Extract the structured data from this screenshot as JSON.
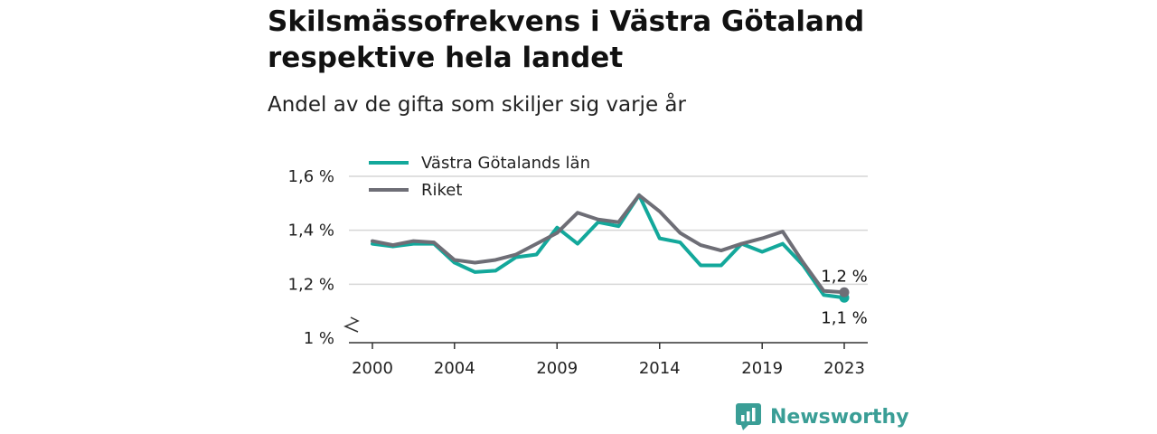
{
  "title": "Skilsmässofrekvens i Västra Götaland respektive hela landet",
  "subtitle": "Andel av de gifta som skiljer sig varje år",
  "brand": {
    "name": "Newsworthy",
    "icon": "newsworthy-logo-icon"
  },
  "colors": {
    "vg": "#13a89b",
    "riket": "#6e6e76",
    "grid": "#d6d6d6",
    "axis": "#333333"
  },
  "chart_data": {
    "type": "line",
    "x": [
      2000,
      2001,
      2002,
      2003,
      2004,
      2005,
      2006,
      2007,
      2008,
      2009,
      2010,
      2011,
      2012,
      2013,
      2014,
      2015,
      2016,
      2017,
      2018,
      2019,
      2020,
      2021,
      2022,
      2023
    ],
    "x_ticks": [
      2000,
      2004,
      2009,
      2014,
      2019,
      2023
    ],
    "x_tick_labels": [
      "2000",
      "2004",
      "2009",
      "2014",
      "2019",
      "2023"
    ],
    "y_ticks": [
      1.0,
      1.2,
      1.4,
      1.6
    ],
    "y_tick_labels": [
      "1 %",
      "1,2 %",
      "1,4 %",
      "1,6 %"
    ],
    "ylim": [
      1.0,
      1.6
    ],
    "xlim": [
      2000,
      2023
    ],
    "y_axis_break": true,
    "grid": true,
    "legend_position": "top-left",
    "series": [
      {
        "name": "Västra Götalands län",
        "color": "#13a89b",
        "values": [
          1.35,
          1.34,
          1.35,
          1.35,
          1.28,
          1.245,
          1.25,
          1.3,
          1.31,
          1.41,
          1.35,
          1.43,
          1.415,
          1.53,
          1.37,
          1.355,
          1.27,
          1.27,
          1.35,
          1.32,
          1.35,
          1.27,
          1.16,
          1.15
        ],
        "end_label": "1,1 %"
      },
      {
        "name": "Riket",
        "color": "#6e6e76",
        "values": [
          1.36,
          1.345,
          1.36,
          1.355,
          1.29,
          1.28,
          1.29,
          1.31,
          1.35,
          1.39,
          1.465,
          1.44,
          1.43,
          1.53,
          1.47,
          1.39,
          1.345,
          1.325,
          1.35,
          1.37,
          1.395,
          1.28,
          1.175,
          1.17
        ],
        "end_label": "1,2 %"
      }
    ]
  }
}
